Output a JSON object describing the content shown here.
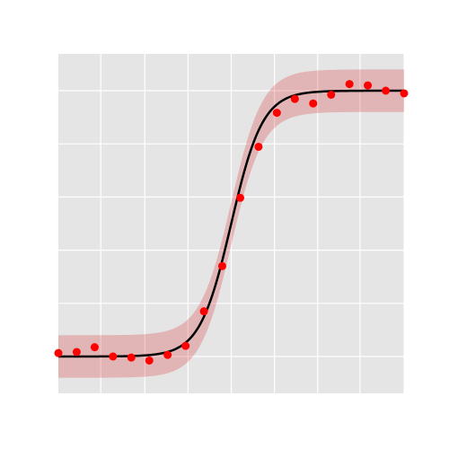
{
  "chart_data": {
    "type": "scatter",
    "title": "",
    "xlabel": "",
    "ylabel": "",
    "xlim": [
      0,
      1
    ],
    "ylim": [
      -0.1,
      1.1
    ],
    "grid": true,
    "legend": "none",
    "x_gridlines": [
      0.1225,
      0.25,
      0.375,
      0.5,
      0.625,
      0.75,
      0.8725,
      1.0
    ],
    "y_gridlines": [
      0.0,
      0.2,
      0.4,
      0.6,
      0.8,
      1.0
    ],
    "series": [
      {
        "kind": "points",
        "color": "#ff0000",
        "x": [
          0.0,
          0.053,
          0.105,
          0.158,
          0.211,
          0.263,
          0.316,
          0.368,
          0.421,
          0.474,
          0.526,
          0.579,
          0.632,
          0.684,
          0.737,
          0.789,
          0.842,
          0.895,
          0.947,
          1.0
        ],
        "y": [
          0.013,
          0.017,
          0.035,
          0.0,
          -0.004,
          -0.015,
          0.006,
          0.04,
          0.17,
          0.34,
          0.597,
          0.789,
          0.917,
          0.969,
          0.952,
          0.985,
          1.025,
          1.02,
          1.0,
          0.99
        ]
      },
      {
        "kind": "fit-line",
        "color": "#000000",
        "function": "logistic",
        "L": 1.0,
        "k": 22,
        "x0": 0.5
      },
      {
        "kind": "band",
        "color": "#d62728",
        "opacity": 0.25,
        "halfwidth": 0.08
      }
    ]
  }
}
